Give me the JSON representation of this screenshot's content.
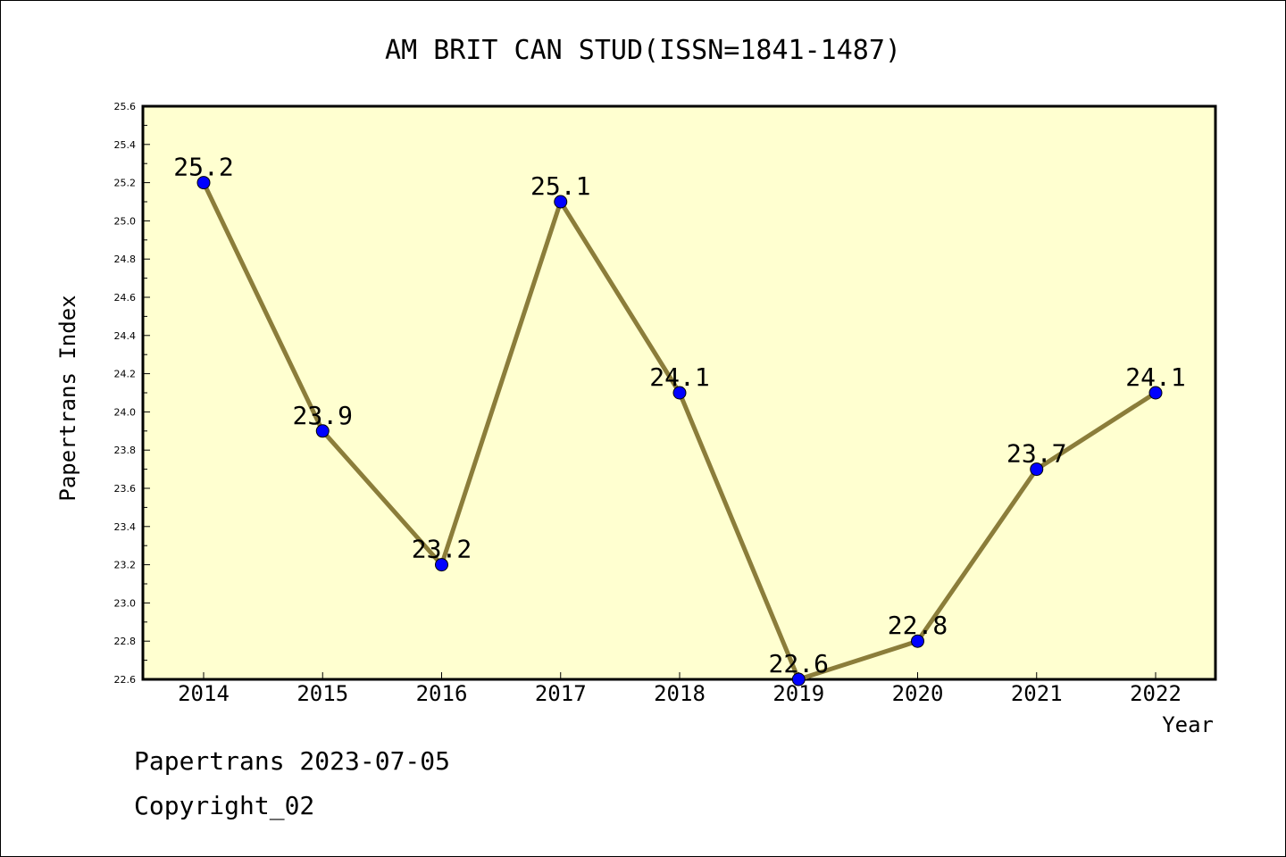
{
  "chart_data": {
    "type": "line",
    "title": "AM BRIT CAN STUD(ISSN=1841-1487)",
    "xlabel": "Year",
    "ylabel": "Papertrans Index",
    "categories": [
      "2014",
      "2015",
      "2016",
      "2017",
      "2018",
      "2019",
      "2020",
      "2021",
      "2022"
    ],
    "values": [
      25.2,
      23.9,
      23.2,
      25.1,
      24.1,
      22.6,
      22.8,
      23.7,
      24.1
    ],
    "data_labels": [
      "25.2",
      "23.9",
      "23.2",
      "25.1",
      "24.1",
      "22.6",
      "22.8",
      "23.7",
      "24.1"
    ],
    "ylim": [
      22.6,
      25.6
    ],
    "yticks": [
      "22.6",
      "22.8",
      "23.0",
      "23.2",
      "23.4",
      "23.6",
      "23.8",
      "24.0",
      "24.2",
      "24.4",
      "24.6",
      "24.8",
      "25.0",
      "25.2",
      "25.4",
      "25.6"
    ],
    "grid": false,
    "legend": "none",
    "colors": {
      "plot_background": "#ffffd0",
      "line": "#8b7d3a",
      "marker": "#0000ff"
    }
  },
  "footer": {
    "line1": "Papertrans 2023-07-05",
    "line2": "Copyright_02"
  }
}
